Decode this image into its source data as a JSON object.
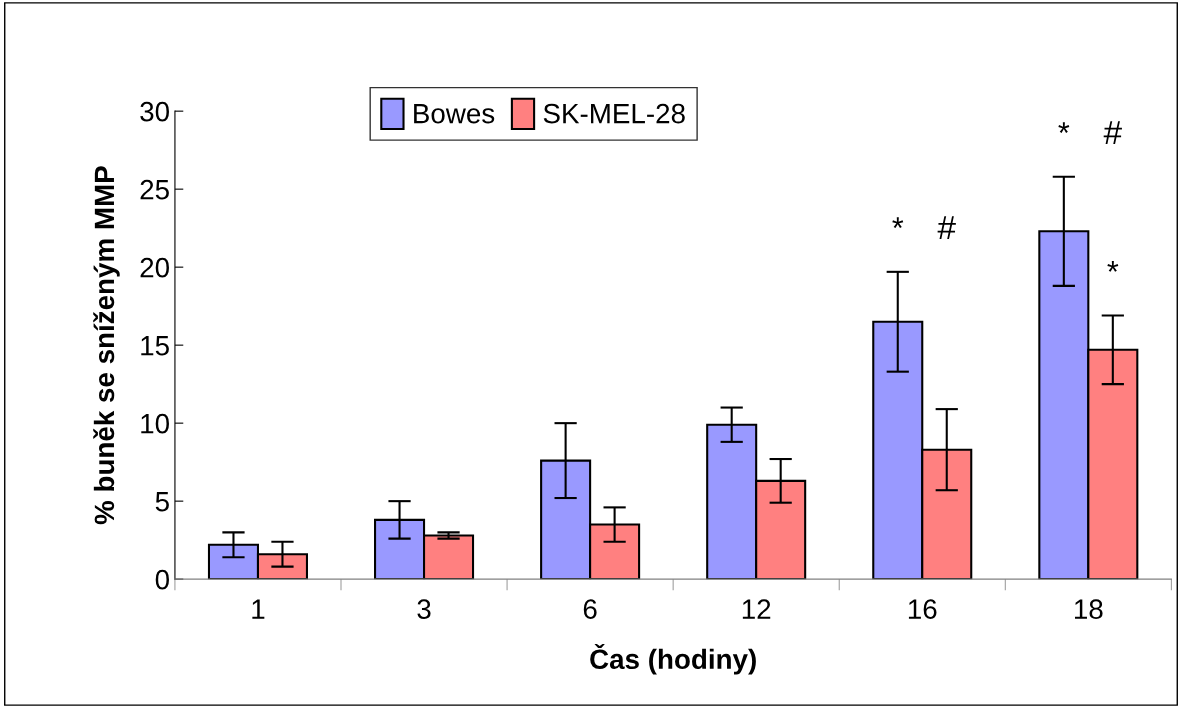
{
  "chart_data": {
    "type": "bar",
    "xlabel": "Čas (hodiny)",
    "ylabel": "% buněk se sníženým MMP",
    "categories": [
      "1",
      "3",
      "6",
      "12",
      "16",
      "18"
    ],
    "series": [
      {
        "name": "Bowes",
        "color": "#9999ff",
        "values": [
          2.2,
          3.8,
          7.6,
          9.9,
          16.5,
          22.3
        ],
        "errors": [
          0.8,
          1.2,
          2.4,
          1.1,
          3.2,
          3.5
        ]
      },
      {
        "name": "SK-MEL-28",
        "color": "#ff8080",
        "values": [
          1.6,
          2.8,
          3.5,
          6.3,
          8.3,
          14.7
        ],
        "errors": [
          0.8,
          0.2,
          1.1,
          1.4,
          2.6,
          2.2
        ]
      }
    ],
    "ylim": [
      0,
      30
    ],
    "yticks": [
      0,
      5,
      10,
      15,
      20,
      25,
      30
    ],
    "grid": false,
    "legend": "top",
    "annotations": [
      "*",
      "#",
      "*",
      "#",
      {
        "text": "*",
        "x": "18",
        "y": 14.7
      }
    ]
  }
}
